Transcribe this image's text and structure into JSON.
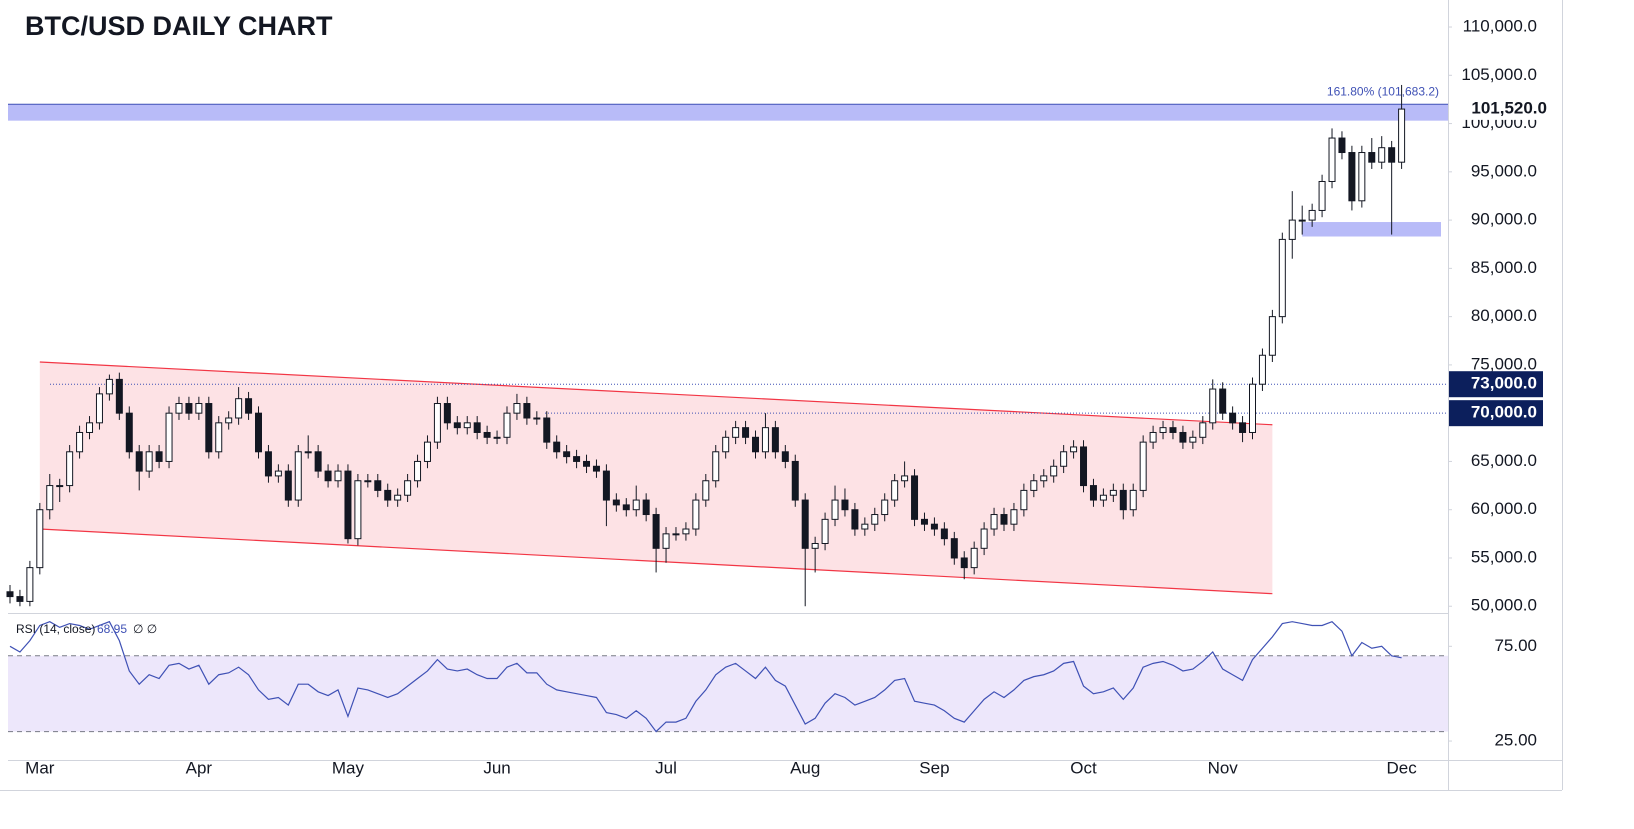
{
  "chart_data": [
    {
      "type": "candlestick",
      "title": "BTC/USD DAILY CHART",
      "ylim": [
        49300,
        112800
      ],
      "yticks": [
        {
          "value": 50000,
          "label": "50,000.0"
        },
        {
          "value": 55000,
          "label": "55,000.0"
        },
        {
          "value": 60000,
          "label": "60,000.0"
        },
        {
          "value": 65000,
          "label": "65,000.0"
        },
        {
          "value": 70000,
          "label": "70,000.0"
        },
        {
          "value": 75000,
          "label": "75,000.0"
        },
        {
          "value": 80000,
          "label": "80,000.0"
        },
        {
          "value": 85000,
          "label": "85,000.0"
        },
        {
          "value": 90000,
          "label": "90,000.0"
        },
        {
          "value": 95000,
          "label": "95,000.0"
        },
        {
          "value": 100000,
          "label": "100,000.0"
        },
        {
          "value": 105000,
          "label": "105,000.0"
        },
        {
          "value": 110000,
          "label": "110,000.0"
        }
      ],
      "up_color": "#ffffff",
      "down_color": "#131722",
      "categories": [
        null,
        null,
        null,
        "Mar",
        null,
        null,
        null,
        null,
        null,
        null,
        null,
        null,
        null,
        null,
        null,
        null,
        null,
        null,
        null,
        "Apr",
        null,
        null,
        null,
        null,
        null,
        null,
        null,
        null,
        null,
        null,
        null,
        null,
        null,
        null,
        "May",
        null,
        null,
        null,
        null,
        null,
        null,
        null,
        null,
        null,
        null,
        null,
        null,
        null,
        null,
        "Jun",
        null,
        null,
        null,
        null,
        null,
        null,
        null,
        null,
        null,
        null,
        null,
        null,
        null,
        null,
        null,
        null,
        "Jul",
        null,
        null,
        null,
        null,
        null,
        null,
        null,
        null,
        null,
        null,
        null,
        null,
        null,
        "Aug",
        null,
        null,
        null,
        null,
        null,
        null,
        null,
        null,
        null,
        null,
        null,
        null,
        "Sep",
        null,
        null,
        null,
        null,
        null,
        null,
        null,
        null,
        null,
        null,
        null,
        null,
        null,
        null,
        "Oct",
        null,
        null,
        null,
        null,
        null,
        null,
        null,
        null,
        null,
        null,
        null,
        null,
        null,
        "Nov",
        null,
        null,
        null,
        null,
        null,
        null,
        null,
        null,
        null,
        null,
        null,
        null,
        null,
        null,
        null,
        null,
        null,
        "Dec"
      ],
      "ohlc": [
        [
          51500,
          52200,
          50300,
          51000
        ],
        [
          51000,
          51700,
          50000,
          50500
        ],
        [
          50500,
          54700,
          50000,
          54000
        ],
        [
          54000,
          60700,
          53300,
          60000
        ],
        [
          60000,
          63700,
          59000,
          62500
        ],
        [
          62500,
          63200,
          60800,
          62500
        ],
        [
          62500,
          66700,
          61800,
          66000
        ],
        [
          66000,
          68700,
          65300,
          68000
        ],
        [
          68000,
          69700,
          67300,
          69000
        ],
        [
          69000,
          72700,
          68300,
          72000
        ],
        [
          72000,
          74000,
          71300,
          73500
        ],
        [
          73500,
          74200,
          69300,
          70000
        ],
        [
          70000,
          70700,
          65300,
          66000
        ],
        [
          66000,
          66700,
          62000,
          64000
        ],
        [
          64000,
          66700,
          63300,
          66000
        ],
        [
          66000,
          66700,
          64300,
          65000
        ],
        [
          65000,
          70700,
          64300,
          70000
        ],
        [
          70000,
          71700,
          69300,
          71000
        ],
        [
          71000,
          71700,
          69300,
          70000
        ],
        [
          70000,
          71700,
          69300,
          71000
        ],
        [
          71000,
          71700,
          65300,
          66000
        ],
        [
          66000,
          69700,
          65300,
          69000
        ],
        [
          69000,
          70200,
          68300,
          69500
        ],
        [
          69500,
          72700,
          68800,
          71500
        ],
        [
          71500,
          72200,
          69300,
          70000
        ],
        [
          70000,
          70700,
          65300,
          66000
        ],
        [
          66000,
          66700,
          62800,
          63500
        ],
        [
          63500,
          64700,
          62800,
          64000
        ],
        [
          64000,
          64700,
          60300,
          61000
        ],
        [
          61000,
          66700,
          60300,
          66000
        ],
        [
          66000,
          67700,
          65300,
          66000
        ],
        [
          66000,
          66700,
          63300,
          64000
        ],
        [
          64000,
          64700,
          62300,
          63000
        ],
        [
          63000,
          64700,
          62300,
          64000
        ],
        [
          64000,
          64700,
          56500,
          57000
        ],
        [
          57000,
          63700,
          56300,
          63000
        ],
        [
          63000,
          63700,
          62300,
          63000
        ],
        [
          63000,
          63700,
          61300,
          62000
        ],
        [
          62000,
          62700,
          60300,
          61000
        ],
        [
          61000,
          62200,
          60300,
          61500
        ],
        [
          61500,
          63700,
          60800,
          63000
        ],
        [
          63000,
          65700,
          62300,
          65000
        ],
        [
          65000,
          67700,
          64300,
          67000
        ],
        [
          67000,
          71700,
          66300,
          71000
        ],
        [
          71000,
          71700,
          68300,
          69000
        ],
        [
          69000,
          69700,
          67800,
          68500
        ],
        [
          68500,
          69700,
          67800,
          69000
        ],
        [
          69000,
          69700,
          67300,
          68000
        ],
        [
          68000,
          68700,
          66800,
          67500
        ],
        [
          67500,
          68200,
          66800,
          67500
        ],
        [
          67500,
          70700,
          66800,
          70000
        ],
        [
          70000,
          72000,
          69300,
          71000
        ],
        [
          71000,
          71700,
          68800,
          69500
        ],
        [
          69500,
          70200,
          68800,
          69500
        ],
        [
          69500,
          70200,
          66300,
          67000
        ],
        [
          67000,
          67700,
          65300,
          66000
        ],
        [
          66000,
          66700,
          64800,
          65500
        ],
        [
          65500,
          66200,
          64300,
          65000
        ],
        [
          65000,
          65700,
          63800,
          64500
        ],
        [
          64500,
          65200,
          63300,
          64000
        ],
        [
          64000,
          64700,
          58300,
          61000
        ],
        [
          61000,
          61700,
          59800,
          60500
        ],
        [
          60500,
          61200,
          59300,
          60000
        ],
        [
          60000,
          62500,
          59300,
          61000
        ],
        [
          61000,
          61700,
          58800,
          59500
        ],
        [
          59500,
          60200,
          53500,
          56000
        ],
        [
          56000,
          58200,
          54500,
          57500
        ],
        [
          57500,
          58200,
          56800,
          57500
        ],
        [
          57500,
          58700,
          56800,
          58000
        ],
        [
          58000,
          61700,
          57300,
          61000
        ],
        [
          61000,
          63700,
          60300,
          63000
        ],
        [
          63000,
          66700,
          62300,
          66000
        ],
        [
          66000,
          68200,
          65300,
          67500
        ],
        [
          67500,
          69200,
          66800,
          68500
        ],
        [
          68500,
          69200,
          66800,
          67500
        ],
        [
          67500,
          68200,
          65300,
          66000
        ],
        [
          66000,
          70000,
          65300,
          68500
        ],
        [
          68500,
          69200,
          65300,
          66000
        ],
        [
          66000,
          66700,
          64300,
          65000
        ],
        [
          65000,
          65700,
          60300,
          61000
        ],
        [
          61000,
          61700,
          50000,
          56000
        ],
        [
          56000,
          57200,
          53500,
          56500
        ],
        [
          56500,
          59700,
          55800,
          59000
        ],
        [
          59000,
          62500,
          58300,
          61000
        ],
        [
          61000,
          62200,
          59300,
          60000
        ],
        [
          60000,
          60700,
          57300,
          58000
        ],
        [
          58000,
          59200,
          57300,
          58500
        ],
        [
          58500,
          60200,
          57800,
          59500
        ],
        [
          59500,
          61700,
          58800,
          61000
        ],
        [
          61000,
          63700,
          60300,
          63000
        ],
        [
          63000,
          65000,
          62300,
          63500
        ],
        [
          63500,
          64200,
          58300,
          59000
        ],
        [
          59000,
          59700,
          57800,
          58500
        ],
        [
          58500,
          59200,
          57300,
          58000
        ],
        [
          58000,
          58700,
          56300,
          57000
        ],
        [
          57000,
          57700,
          54300,
          55000
        ],
        [
          55000,
          55700,
          52800,
          54000
        ],
        [
          54000,
          56700,
          53300,
          56000
        ],
        [
          56000,
          58700,
          55300,
          58000
        ],
        [
          58000,
          60200,
          57300,
          59500
        ],
        [
          59500,
          60200,
          57800,
          58500
        ],
        [
          58500,
          60700,
          57800,
          60000
        ],
        [
          60000,
          62700,
          59300,
          62000
        ],
        [
          62000,
          63700,
          61300,
          63000
        ],
        [
          63000,
          64200,
          62300,
          63500
        ],
        [
          63500,
          65200,
          62800,
          64500
        ],
        [
          64500,
          66700,
          63800,
          66000
        ],
        [
          66000,
          67200,
          65300,
          66500
        ],
        [
          66500,
          67200,
          61800,
          62500
        ],
        [
          62500,
          63200,
          60300,
          61000
        ],
        [
          61000,
          62200,
          60300,
          61500
        ],
        [
          61500,
          62700,
          60800,
          62000
        ],
        [
          62000,
          62700,
          59000,
          60000
        ],
        [
          60000,
          62700,
          59300,
          62000
        ],
        [
          62000,
          67700,
          61300,
          67000
        ],
        [
          67000,
          68700,
          66300,
          68000
        ],
        [
          68000,
          69200,
          67300,
          68500
        ],
        [
          68500,
          69200,
          67300,
          68000
        ],
        [
          68000,
          68700,
          66300,
          67000
        ],
        [
          67000,
          68200,
          66300,
          67500
        ],
        [
          67500,
          69700,
          66800,
          69000
        ],
        [
          69000,
          73500,
          68300,
          72500
        ],
        [
          72500,
          73200,
          69300,
          70000
        ],
        [
          70000,
          70700,
          68300,
          69000
        ],
        [
          69000,
          69700,
          67000,
          68000
        ],
        [
          68000,
          73700,
          67300,
          73000
        ],
        [
          73000,
          76700,
          72300,
          76000
        ],
        [
          76000,
          80700,
          75300,
          80000
        ],
        [
          80000,
          88700,
          79300,
          88000
        ],
        [
          88000,
          93000,
          86000,
          90000
        ],
        [
          90000,
          91500,
          88500,
          90000
        ],
        [
          90000,
          91700,
          89300,
          91000
        ],
        [
          91000,
          94700,
          90300,
          94000
        ],
        [
          94000,
          99500,
          93300,
          98500
        ],
        [
          98500,
          99200,
          96300,
          97000
        ],
        [
          97000,
          97700,
          91000,
          92000
        ],
        [
          92000,
          97700,
          91300,
          97000
        ],
        [
          97000,
          98500,
          95300,
          96000
        ],
        [
          96000,
          98700,
          95300,
          97500
        ],
        [
          97500,
          98200,
          88500,
          96000
        ],
        [
          96000,
          104000,
          95300,
          101500
        ]
      ],
      "channel": {
        "x": [
          3,
          127
        ],
        "upper": [
          75300,
          68800
        ],
        "lower": [
          58000,
          51300
        ],
        "color": "#f23645",
        "fill": "#fde2e5"
      },
      "levels": [
        {
          "value": 73000,
          "label": "73,000.0"
        },
        {
          "value": 70000,
          "label": "70,000.0"
        }
      ],
      "zones": [
        {
          "low": 100300,
          "high": 102000
        },
        {
          "low": 88300,
          "high": 89800,
          "from": 130
        }
      ],
      "zone_color": "#b8bbf8",
      "price_label": {
        "value": 101520,
        "label": "101,520.0"
      },
      "annotation": "161.80% (101,683.2)"
    },
    {
      "type": "line",
      "name": "RSI (14, close)",
      "extra": "∅ ∅",
      "color": "#3f51b5",
      "ylim": [
        15,
        91
      ],
      "yticks": [
        {
          "value": 75,
          "label": "75.00"
        },
        {
          "value": 25,
          "label": "25.00"
        }
      ],
      "bands": [
        30,
        70
      ],
      "values": [
        75,
        72,
        78,
        86,
        88,
        85,
        87,
        86,
        84,
        86,
        88,
        78,
        62,
        55,
        60,
        58,
        65,
        66,
        63,
        65,
        55,
        60,
        61,
        64,
        60,
        52,
        47,
        48,
        44,
        55,
        55,
        51,
        49,
        52,
        38,
        53,
        52,
        50,
        48,
        50,
        54,
        58,
        62,
        68,
        63,
        62,
        63,
        60,
        58,
        58,
        64,
        66,
        61,
        61,
        55,
        52,
        51,
        50,
        49,
        48,
        40,
        39,
        37,
        41,
        37,
        30,
        35,
        35,
        37,
        46,
        52,
        60,
        64,
        66,
        62,
        58,
        64,
        57,
        54,
        44,
        34,
        37,
        45,
        50,
        48,
        44,
        46,
        48,
        52,
        57,
        58,
        46,
        45,
        44,
        41,
        37,
        35,
        41,
        47,
        51,
        48,
        52,
        57,
        59,
        60,
        62,
        66,
        67,
        54,
        50,
        51,
        53,
        47,
        53,
        64,
        66,
        67,
        65,
        62,
        63,
        67,
        72,
        63,
        60,
        57,
        68,
        74,
        80,
        87,
        88,
        87,
        86,
        86,
        88,
        83,
        70,
        77,
        74,
        75,
        70,
        68.95
      ]
    }
  ]
}
